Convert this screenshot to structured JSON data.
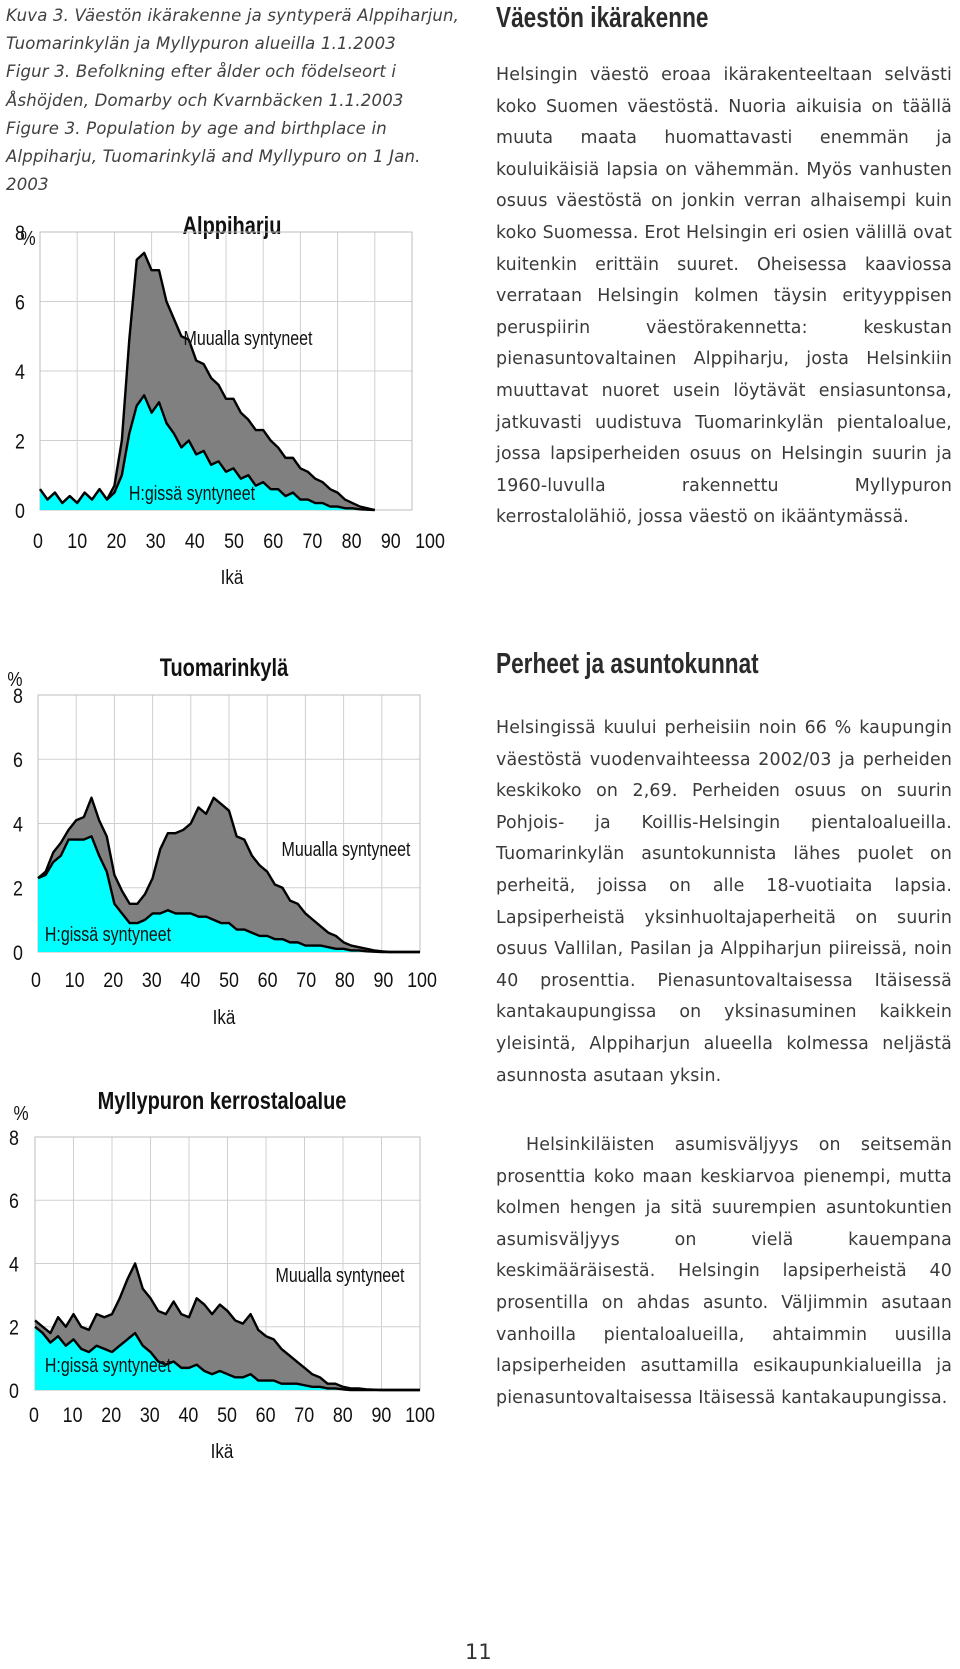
{
  "caption": {
    "fi": "Kuva 3. Väestön ikärakenne ja syntyperä Alppiharjun, Tuomarinkylän ja Myllypuron alueilla 1.1.2003",
    "sv": "Figur 3. Befolkning efter ålder och födelseort i Åshöjden, Domarby och Kvarnbäcken 1.1.2003",
    "en": "Figure 3. Population by age and birthplace in Alppiharju, Tuomarinkylä and Myllypuro on 1 Jan. 2003"
  },
  "chart_data": [
    {
      "type": "area",
      "title": "Alppiharju",
      "xlabel": "Ikä",
      "ylabel": "%",
      "xlim": [
        0,
        100
      ],
      "ylim": [
        0,
        8
      ],
      "xticks": [
        "0",
        "10",
        "20",
        "30",
        "40",
        "50",
        "60",
        "70",
        "80",
        "90",
        "100"
      ],
      "yticks": [
        "0",
        "2",
        "4",
        "6",
        "8"
      ],
      "grid": true,
      "x": [
        0,
        2,
        4,
        6,
        8,
        10,
        12,
        14,
        16,
        18,
        20,
        22,
        24,
        26,
        28,
        30,
        32,
        34,
        36,
        38,
        40,
        42,
        44,
        46,
        48,
        50,
        52,
        54,
        56,
        58,
        60,
        62,
        64,
        66,
        68,
        70,
        72,
        74,
        76,
        78,
        80,
        82,
        84,
        86,
        88,
        90
      ],
      "series": [
        {
          "name": "H:gissä syntyneet",
          "color": "#00ffff",
          "values": [
            0.6,
            0.3,
            0.5,
            0.2,
            0.4,
            0.2,
            0.5,
            0.3,
            0.6,
            0.3,
            0.5,
            1.0,
            2.2,
            3.0,
            3.3,
            2.8,
            3.1,
            2.5,
            2.2,
            1.8,
            2.0,
            1.6,
            1.7,
            1.3,
            1.4,
            1.1,
            1.2,
            0.9,
            1.0,
            0.7,
            0.8,
            0.6,
            0.6,
            0.4,
            0.5,
            0.3,
            0.3,
            0.2,
            0.2,
            0.1,
            0.1,
            0.05,
            0.05,
            0.02,
            0.01,
            0.0
          ]
        },
        {
          "name": "Muualla syntyneet",
          "color": "#808080",
          "values": [
            0.6,
            0.3,
            0.5,
            0.2,
            0.4,
            0.2,
            0.5,
            0.3,
            0.6,
            0.3,
            0.7,
            2.0,
            4.9,
            7.2,
            7.4,
            6.9,
            6.9,
            6.0,
            5.5,
            5.0,
            4.9,
            4.3,
            4.2,
            3.8,
            3.6,
            3.2,
            3.2,
            2.8,
            2.6,
            2.3,
            2.3,
            2.0,
            1.8,
            1.5,
            1.5,
            1.2,
            1.1,
            0.9,
            0.8,
            0.6,
            0.5,
            0.3,
            0.2,
            0.1,
            0.05,
            0.0
          ]
        }
      ],
      "annotations": [
        "Muualla syntyneet",
        "H:gissä syntyneet"
      ]
    },
    {
      "type": "area",
      "title": "Tuomarinkylä",
      "xlabel": "Ikä",
      "ylabel": "%",
      "xlim": [
        0,
        100
      ],
      "ylim": [
        0,
        8
      ],
      "xticks": [
        "0",
        "10",
        "20",
        "30",
        "40",
        "50",
        "60",
        "70",
        "80",
        "90",
        "100"
      ],
      "yticks": [
        "0",
        "2",
        "4",
        "6",
        "8"
      ],
      "grid": true,
      "x": [
        0,
        2,
        4,
        6,
        8,
        10,
        12,
        14,
        16,
        18,
        20,
        22,
        24,
        26,
        28,
        30,
        32,
        34,
        36,
        38,
        40,
        42,
        44,
        46,
        48,
        50,
        52,
        54,
        56,
        58,
        60,
        62,
        64,
        66,
        68,
        70,
        72,
        74,
        76,
        78,
        80,
        82,
        84,
        86,
        88,
        90,
        92,
        94,
        96,
        98,
        100
      ],
      "series": [
        {
          "name": "H:gissä syntyneet",
          "color": "#00ffff",
          "values": [
            2.3,
            2.4,
            2.8,
            3.0,
            3.5,
            3.5,
            3.5,
            3.6,
            3.0,
            2.5,
            1.5,
            1.2,
            0.9,
            0.9,
            1.0,
            1.2,
            1.2,
            1.3,
            1.2,
            1.2,
            1.2,
            1.1,
            1.1,
            1.0,
            0.9,
            0.9,
            0.7,
            0.7,
            0.6,
            0.5,
            0.5,
            0.4,
            0.4,
            0.3,
            0.3,
            0.2,
            0.2,
            0.2,
            0.15,
            0.1,
            0.1,
            0.05,
            0.05,
            0.02,
            0.01,
            0.0,
            0.0,
            0.0,
            0.0,
            0.0,
            0.0
          ]
        },
        {
          "name": "Muualla syntyneet",
          "color": "#808080",
          "values": [
            2.3,
            2.5,
            3.1,
            3.4,
            3.8,
            4.1,
            4.2,
            4.8,
            4.1,
            3.6,
            2.4,
            1.9,
            1.5,
            1.5,
            1.8,
            2.3,
            3.2,
            3.7,
            3.7,
            3.8,
            4.0,
            4.5,
            4.3,
            4.8,
            4.6,
            4.4,
            3.6,
            3.5,
            3.0,
            2.7,
            2.5,
            2.1,
            2.0,
            1.6,
            1.5,
            1.2,
            1.0,
            0.8,
            0.6,
            0.5,
            0.3,
            0.2,
            0.15,
            0.1,
            0.05,
            0.02,
            0.0,
            0.0,
            0.0,
            0.0,
            0.0
          ]
        }
      ],
      "annotations": [
        "Muualla syntyneet",
        "H:gissä syntyneet"
      ]
    },
    {
      "type": "area",
      "title": "Myllypuron kerrostaloalue",
      "xlabel": "Ikä",
      "ylabel": "%",
      "xlim": [
        0,
        100
      ],
      "ylim": [
        0,
        8
      ],
      "xticks": [
        "0",
        "10",
        "20",
        "30",
        "40",
        "50",
        "60",
        "70",
        "80",
        "90",
        "100"
      ],
      "yticks": [
        "0",
        "2",
        "4",
        "6",
        "8"
      ],
      "grid": true,
      "x": [
        0,
        2,
        4,
        6,
        8,
        10,
        12,
        14,
        16,
        18,
        20,
        22,
        24,
        26,
        28,
        30,
        32,
        34,
        36,
        38,
        40,
        42,
        44,
        46,
        48,
        50,
        52,
        54,
        56,
        58,
        60,
        62,
        64,
        66,
        68,
        70,
        72,
        74,
        76,
        78,
        80,
        82,
        84,
        86,
        88,
        90,
        92,
        94,
        96,
        98,
        100
      ],
      "series": [
        {
          "name": "H:gissä syntyneet",
          "color": "#00ffff",
          "values": [
            2.0,
            1.8,
            1.5,
            1.7,
            1.4,
            1.6,
            1.3,
            1.2,
            1.4,
            1.3,
            1.2,
            1.4,
            1.6,
            1.8,
            1.4,
            1.2,
            0.9,
            0.8,
            0.9,
            0.7,
            0.7,
            0.8,
            0.6,
            0.5,
            0.6,
            0.5,
            0.4,
            0.4,
            0.5,
            0.3,
            0.3,
            0.3,
            0.2,
            0.2,
            0.2,
            0.15,
            0.1,
            0.1,
            0.05,
            0.05,
            0.02,
            0.0,
            0.0,
            0.0,
            0.0,
            0.0,
            0.0,
            0.0,
            0.0,
            0.0,
            0.0
          ]
        },
        {
          "name": "Muualla syntyneet",
          "color": "#808080",
          "values": [
            2.2,
            2.0,
            1.8,
            2.3,
            2.0,
            2.4,
            2.0,
            1.9,
            2.4,
            2.3,
            2.4,
            2.9,
            3.5,
            4.0,
            3.2,
            2.9,
            2.5,
            2.4,
            2.8,
            2.4,
            2.3,
            2.9,
            2.7,
            2.4,
            2.7,
            2.5,
            2.2,
            2.1,
            2.4,
            1.9,
            1.7,
            1.6,
            1.3,
            1.1,
            0.9,
            0.7,
            0.5,
            0.4,
            0.2,
            0.2,
            0.1,
            0.05,
            0.05,
            0.02,
            0.01,
            0.0,
            0.0,
            0.0,
            0.0,
            0.0,
            0.0
          ]
        }
      ],
      "annotations": [
        "Muualla syntyneet",
        "H:gissä syntyneet"
      ]
    }
  ],
  "section1": {
    "heading": "Väestön ikärakenne",
    "body": "Helsingin väestö eroaa ikärakenteeltaan selvästi koko Suomen väestöstä. Nuoria aikuisia on täällä muuta maata huomattavasti enemmän ja kouluikäisiä lapsia on vähemmän. Myös vanhusten osuus väestöstä on jonkin verran alhaisempi kuin koko Suomessa. Erot Helsingin eri osien välillä ovat kuitenkin erittäin suuret. Oheisessa kaaviossa verrataan Helsingin kolmen täysin erityyppisen peruspiirin väestörakennetta: keskustan pienasuntovaltainen Alppiharju, josta Helsinkiin muuttavat nuoret usein löytävät ensiasuntonsa, jatkuvasti uudistuva Tuomarinkylän pientaloalue, jossa lapsiperheiden osuus on Helsingin suurin ja 1960-luvulla rakennettu Myllypuron kerrostalolähiö, jossa väestö on ikääntymässä."
  },
  "section2": {
    "heading": "Perheet ja asuntokunnat",
    "para1": "Helsingissä kuului perheisiin noin 66 % kaupungin väestöstä vuodenvaihteessa 2002/03 ja perheiden keskikoko on 2,69. Perheiden osuus on suurin Pohjois- ja Koillis-Helsingin pientaloalueilla. Tuomarinkylän asuntokunnista lähes puolet on perheitä, joissa on alle 18-vuotiaita lapsia. Lapsiperheistä yksinhuoltajaperheitä on suurin osuus Vallilan, Pasilan ja Alppiharjun piireissä, noin 40 prosenttia. Pienasuntovaltaisessa Itäisessä kantakaupungissa on yksinasuminen kaikkein yleisintä, Alppiharjun alueella kolmessa neljästä asunnosta asutaan yksin.",
    "para2": "Helsinkiläisten asumisväljyys on seitsemän prosenttia koko maan keskiarvoa pienempi, mutta kolmen hengen ja sitä suurempien asuntokuntien asumisväljyys on vielä kauempana keskimääräisestä. Helsingin lapsiperheistä 40 prosentilla on ahdas asunto. Väljimmin asutaan vanhoilla pientaloalueilla, ahtaimmin uusilla lapsiperheiden asuttamilla esikaupunkialueilla ja pienasuntovaltaisessa Itäisessä kantakaupungissa."
  },
  "page_number": "11"
}
